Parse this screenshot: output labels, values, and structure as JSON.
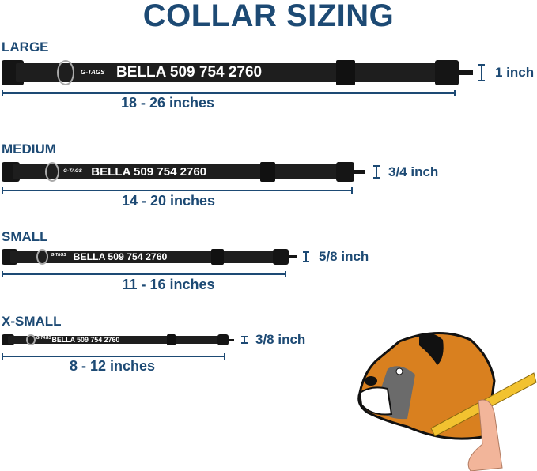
{
  "title": "COLLAR SIZING",
  "collar_text": "BELLA 509 754 2760",
  "logo_text": "G-TAGS",
  "colors": {
    "accent": "#1d4a74",
    "collar": "#1e1e1e"
  },
  "sizes": [
    {
      "label": "LARGE",
      "range": "18 - 26 inches",
      "width": "1 inch"
    },
    {
      "label": "MEDIUM",
      "range": "14 - 20 inches",
      "width": "3/4 inch"
    },
    {
      "label": "SMALL",
      "range": "11 - 16 inches",
      "width": "5/8 inch"
    },
    {
      "label": "X-SMALL",
      "range": "8 - 12 inches",
      "width": "3/8 inch"
    }
  ],
  "illustration": "boxer-dog-measuring-tape"
}
